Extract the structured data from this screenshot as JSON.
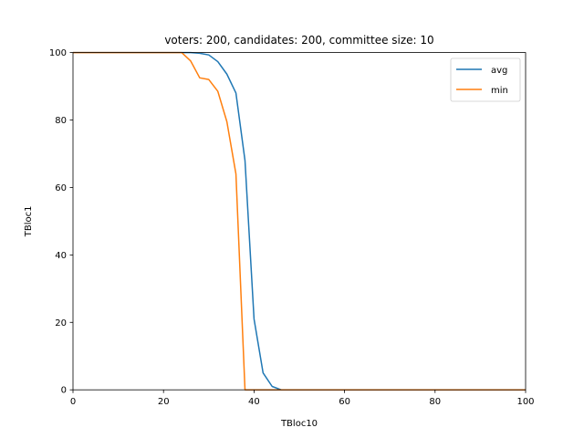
{
  "chart_data": {
    "type": "line",
    "title": "voters: 200, candidates: 200, committee size: 10",
    "xlabel": "TBloc10",
    "ylabel": "TBloc1",
    "xlim": [
      0,
      100
    ],
    "ylim": [
      0,
      100
    ],
    "xticks": [
      0,
      20,
      40,
      60,
      80,
      100
    ],
    "yticks": [
      0,
      20,
      40,
      60,
      80,
      100
    ],
    "xtick_labels": [
      "0",
      "20",
      "40",
      "60",
      "80",
      "100"
    ],
    "ytick_labels": [
      "0",
      "20",
      "40",
      "60",
      "80",
      "100"
    ],
    "grid": false,
    "legend_position": "top-right",
    "series": [
      {
        "name": "avg",
        "color": "#1f77b4",
        "x": [
          0,
          24,
          26,
          28,
          30,
          32,
          34,
          36,
          38,
          40,
          42,
          44,
          46,
          48,
          50,
          60,
          70,
          80,
          90,
          100
        ],
        "y": [
          100,
          100,
          100,
          99.8,
          99.3,
          97.3,
          93.6,
          88,
          68,
          21,
          5,
          1,
          0,
          0,
          0,
          0,
          0,
          0,
          0,
          0
        ]
      },
      {
        "name": "min",
        "color": "#ff7f0e",
        "x": [
          0,
          24,
          26,
          28,
          30,
          32,
          34,
          36,
          38,
          40,
          50,
          60,
          70,
          80,
          90,
          100
        ],
        "y": [
          100,
          100,
          97.5,
          92.5,
          92,
          88.5,
          79.5,
          64,
          0,
          0,
          0,
          0,
          0,
          0,
          0,
          0
        ]
      }
    ]
  }
}
